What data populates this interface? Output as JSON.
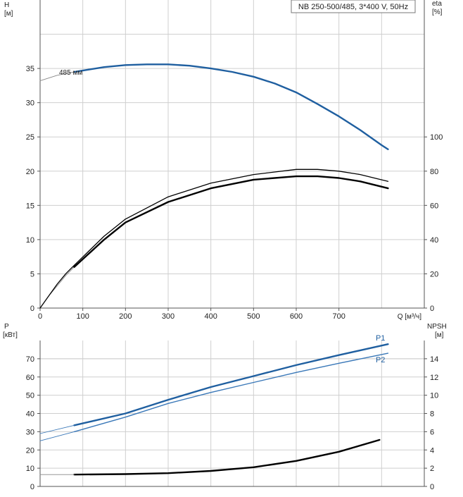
{
  "title": "NB 250-500/485, 3*400 V, 50Hz",
  "colors": {
    "blue": "#1f5fa0",
    "blue_light": "#3a78b8",
    "black": "#000000",
    "thin_gray": "#888888",
    "grid": "#cfcfcf",
    "axis": "#555555"
  },
  "chart_data": [
    {
      "type": "line",
      "panel": "top",
      "title": "",
      "xlabel": "Q [м³/ч]",
      "x_unit": "Q [м³/ч]",
      "xlim": [
        0,
        900
      ],
      "xticks": [
        0,
        100,
        200,
        300,
        400,
        500,
        600,
        700
      ],
      "ylabel_left": "H",
      "ylabel_left_unit": "[м]",
      "ylim_left": [
        0,
        45
      ],
      "yticks_left": [
        0,
        5,
        10,
        15,
        20,
        25,
        30,
        35
      ],
      "ylabel_right": "eta",
      "ylabel_right_unit": "[%]",
      "ylim_right": [
        0,
        180
      ],
      "yticks_right": [
        0,
        20,
        40,
        60,
        80,
        100
      ],
      "grid": true,
      "curve_label": "485 мм",
      "series": [
        {
          "name": "",
          "axis": "left",
          "style": "thin",
          "x": [
            0,
            40,
            80
          ],
          "y": [
            33.2,
            34.0,
            34.5
          ]
        },
        {
          "name": "",
          "axis": "left",
          "style": "blue",
          "x": [
            80,
            150,
            200,
            250,
            300,
            350,
            400,
            450,
            500,
            550,
            600,
            650,
            700,
            750,
            800,
            815
          ],
          "y": [
            34.5,
            35.2,
            35.5,
            35.6,
            35.6,
            35.4,
            35.0,
            34.5,
            33.8,
            32.8,
            31.5,
            29.8,
            28.0,
            26.0,
            23.8,
            23.2
          ]
        },
        {
          "name": "",
          "axis": "right",
          "style": "thin",
          "x": [
            0,
            20,
            40,
            60,
            80
          ],
          "y": [
            0,
            7,
            13,
            19,
            24
          ]
        },
        {
          "name": "",
          "axis": "right",
          "style": "black",
          "x": [
            80,
            150,
            200,
            300,
            400,
            500,
            600,
            650,
            700,
            750,
            815
          ],
          "y": [
            24,
            40,
            50,
            62,
            70,
            75,
            77,
            77,
            76,
            74,
            70
          ]
        },
        {
          "name": "",
          "axis": "right",
          "style": "black_thin",
          "x": [
            0,
            20,
            40,
            60,
            80
          ],
          "y": [
            0,
            7,
            14,
            20,
            25
          ]
        },
        {
          "name": "",
          "axis": "right",
          "style": "black_thin",
          "x": [
            80,
            150,
            200,
            300,
            400,
            500,
            600,
            650,
            700,
            750,
            815
          ],
          "y": [
            25,
            42,
            52,
            65,
            73,
            78,
            81,
            81,
            80,
            78,
            74
          ]
        }
      ]
    },
    {
      "type": "line",
      "panel": "bottom",
      "title": "",
      "xlabel": "",
      "xlim": [
        0,
        900
      ],
      "ylabel_left": "P",
      "ylabel_left_unit": "[кВт]",
      "ylim_left": [
        0,
        80
      ],
      "yticks_left": [
        0,
        10,
        20,
        30,
        40,
        50,
        60,
        70
      ],
      "ylabel_right": "NPSH",
      "ylabel_right_unit": "[м]",
      "ylim_right": [
        0,
        16
      ],
      "yticks_right": [
        0,
        2,
        4,
        6,
        8,
        10,
        12,
        14
      ],
      "grid": true,
      "series": [
        {
          "name": "P1",
          "axis": "left",
          "style": "blue",
          "x": [
            80,
            200,
            300,
            400,
            500,
            600,
            700,
            815
          ],
          "y": [
            33.5,
            40,
            47.5,
            54.5,
            60.5,
            66.5,
            72,
            78
          ]
        },
        {
          "name": "",
          "axis": "left",
          "style": "thin_blue",
          "x": [
            0,
            80
          ],
          "y": [
            29,
            33.5
          ]
        },
        {
          "name": "P2",
          "axis": "left",
          "style": "blue_thin",
          "x": [
            80,
            200,
            300,
            400,
            500,
            600,
            700,
            815
          ],
          "y": [
            30,
            38,
            45.5,
            51.5,
            57,
            62.5,
            67.5,
            73
          ]
        },
        {
          "name": "",
          "axis": "left",
          "style": "thin_blue",
          "x": [
            0,
            80
          ],
          "y": [
            25,
            30
          ]
        },
        {
          "name": "",
          "axis": "right",
          "style": "black",
          "x": [
            80,
            200,
            300,
            400,
            500,
            600,
            700,
            795
          ],
          "y": [
            1.3,
            1.35,
            1.45,
            1.7,
            2.1,
            2.8,
            3.8,
            5.1
          ]
        },
        {
          "name": "",
          "axis": "right",
          "style": "thin",
          "x": [
            0,
            80
          ],
          "y": [
            1.3,
            1.3
          ]
        }
      ]
    }
  ]
}
